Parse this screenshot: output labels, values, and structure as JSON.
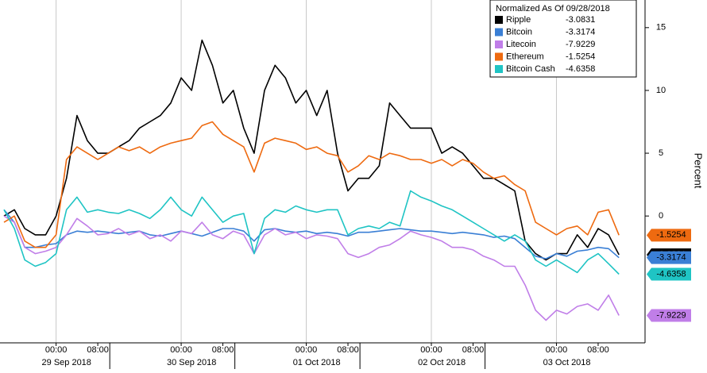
{
  "chart_data": {
    "type": "line",
    "legend_title": "Normalized As Of 09/28/2018",
    "y_label": "Percent",
    "x": [
      "2018-09-28 14:00",
      "2018-09-28 16:00",
      "2018-09-28 18:00",
      "2018-09-28 20:00",
      "2018-09-28 22:00",
      "2018-09-29 00:00",
      "2018-09-29 02:00",
      "2018-09-29 04:00",
      "2018-09-29 06:00",
      "2018-09-29 08:00",
      "2018-09-29 10:00",
      "2018-09-29 12:00",
      "2018-09-29 14:00",
      "2018-09-29 16:00",
      "2018-09-29 18:00",
      "2018-09-29 20:00",
      "2018-09-29 22:00",
      "2018-09-30 00:00",
      "2018-09-30 02:00",
      "2018-09-30 04:00",
      "2018-09-30 06:00",
      "2018-09-30 08:00",
      "2018-09-30 10:00",
      "2018-09-30 12:00",
      "2018-09-30 14:00",
      "2018-09-30 16:00",
      "2018-09-30 18:00",
      "2018-09-30 20:00",
      "2018-09-30 22:00",
      "2018-10-01 00:00",
      "2018-10-01 02:00",
      "2018-10-01 04:00",
      "2018-10-01 06:00",
      "2018-10-01 08:00",
      "2018-10-01 10:00",
      "2018-10-01 12:00",
      "2018-10-01 14:00",
      "2018-10-01 16:00",
      "2018-10-01 18:00",
      "2018-10-01 20:00",
      "2018-10-01 22:00",
      "2018-10-02 00:00",
      "2018-10-02 02:00",
      "2018-10-02 04:00",
      "2018-10-02 06:00",
      "2018-10-02 08:00",
      "2018-10-02 10:00",
      "2018-10-02 12:00",
      "2018-10-02 14:00",
      "2018-10-02 16:00",
      "2018-10-02 18:00",
      "2018-10-02 20:00",
      "2018-10-02 22:00",
      "2018-10-03 00:00",
      "2018-10-03 02:00",
      "2018-10-03 04:00",
      "2018-10-03 06:00",
      "2018-10-03 08:00",
      "2018-10-03 10:00",
      "2018-10-03 12:00"
    ],
    "series": [
      {
        "name": "Ripple",
        "color": "#000000",
        "label_text_color": "#ffffff",
        "values": [
          0,
          0.5,
          -1,
          -1.5,
          -1.5,
          0,
          3,
          8,
          6,
          5,
          5,
          5.5,
          6,
          7,
          7.5,
          8,
          9,
          11,
          10,
          14,
          12,
          9,
          10,
          7,
          5,
          10,
          12,
          11,
          9,
          10,
          8,
          10,
          5,
          2,
          3,
          3,
          4,
          9,
          8,
          7,
          7,
          7,
          5,
          5.5,
          5,
          4,
          3,
          3,
          2.5,
          2,
          -2,
          -3,
          -3.5,
          -3,
          -3,
          -1.5,
          -2.5,
          -1,
          -1.5,
          -3.0831
        ]
      },
      {
        "name": "Bitcoin",
        "color": "#3a7fd5",
        "label_text_color": "#000000",
        "values": [
          0.5,
          -0.5,
          -2.5,
          -2.5,
          -2.3,
          -2.2,
          -1.5,
          -1.2,
          -1.3,
          -1.2,
          -1.3,
          -1.4,
          -1.3,
          -1.2,
          -1.5,
          -1.6,
          -1.4,
          -1.2,
          -1.4,
          -1.6,
          -1.3,
          -1.0,
          -1.0,
          -1.2,
          -2.0,
          -1.1,
          -1.0,
          -1.2,
          -1.3,
          -1.2,
          -1.4,
          -1.3,
          -1.4,
          -1.6,
          -1.3,
          -1.3,
          -1.2,
          -1.1,
          -1.0,
          -1.1,
          -1.2,
          -1.2,
          -1.3,
          -1.4,
          -1.3,
          -1.4,
          -1.5,
          -1.7,
          -1.6,
          -1.8,
          -2.5,
          -3.2,
          -3.4,
          -3.0,
          -3.2,
          -2.8,
          -2.7,
          -2.5,
          -2.6,
          -3.3174
        ]
      },
      {
        "name": "Litecoin",
        "color": "#c07ee8",
        "label_text_color": "#000000",
        "values": [
          0,
          -0.5,
          -2.5,
          -3,
          -2.8,
          -2.5,
          -1.5,
          -0.2,
          -0.8,
          -1.5,
          -1.4,
          -1.0,
          -1.5,
          -1.2,
          -1.8,
          -1.5,
          -2.0,
          -1.2,
          -1.4,
          -0.5,
          -1.5,
          -1.8,
          -1.2,
          -1.5,
          -3.0,
          -1.5,
          -1.0,
          -1.5,
          -1.3,
          -1.8,
          -1.5,
          -1.6,
          -1.8,
          -3.0,
          -3.3,
          -3.0,
          -2.5,
          -2.3,
          -1.8,
          -1.2,
          -1.5,
          -1.7,
          -2.0,
          -2.5,
          -2.5,
          -2.7,
          -3.2,
          -3.5,
          -4.0,
          -4.0,
          -5.5,
          -7.5,
          -8.3,
          -7.5,
          -7.8,
          -7.2,
          -7.0,
          -7.5,
          -6.3,
          -7.9229
        ]
      },
      {
        "name": "Ethereum",
        "color": "#ee6a10",
        "label_text_color": "#000000",
        "values": [
          -0.5,
          0,
          -2,
          -2.5,
          -2.5,
          -1.5,
          4.5,
          5.5,
          5,
          4.5,
          5,
          5.5,
          5.2,
          5.5,
          5.0,
          5.5,
          5.8,
          6.0,
          6.2,
          7.2,
          7.5,
          6.5,
          6.0,
          5.5,
          3.5,
          5.8,
          6.2,
          6.0,
          5.8,
          5.3,
          5.5,
          5.0,
          4.8,
          3.5,
          4.0,
          4.8,
          4.5,
          5.0,
          4.8,
          4.5,
          4.5,
          4.2,
          4.5,
          4.0,
          4.5,
          4.2,
          3.5,
          3.0,
          3.2,
          2.5,
          2.0,
          -0.5,
          -1.0,
          -1.5,
          -1.0,
          -0.8,
          -1.5,
          0.3,
          0.5,
          -1.5254
        ]
      },
      {
        "name": "Bitcoin Cash",
        "color": "#1fc4c4",
        "label_text_color": "#000000",
        "values": [
          0.5,
          -1,
          -3.5,
          -4,
          -3.7,
          -3,
          0.5,
          1.5,
          0.3,
          0.5,
          0.3,
          0.2,
          0.5,
          0.2,
          -0.2,
          0.5,
          1.5,
          0.5,
          0.0,
          1.5,
          0.5,
          -0.5,
          0,
          0.2,
          -3.0,
          -0.2,
          0.5,
          0.3,
          0.8,
          0.5,
          0.3,
          0.5,
          0.5,
          -1.5,
          -1.0,
          -0.8,
          -1.0,
          -0.5,
          -0.8,
          2.0,
          1.5,
          1.2,
          0.8,
          0.5,
          0.0,
          -0.5,
          -1.0,
          -1.5,
          -2.0,
          -1.5,
          -2.0,
          -3.5,
          -4.0,
          -3.5,
          -4.0,
          -4.5,
          -3.5,
          -3.0,
          -3.8,
          -4.6358
        ]
      }
    ],
    "xlim": [
      "2018-09-28 14:00",
      "2018-10-03 17:00"
    ],
    "xticks": [
      {
        "value": "2018-09-29 00:00",
        "label": "00:00"
      },
      {
        "value": "2018-09-29 08:00",
        "label": "08:00"
      },
      {
        "value": "2018-09-30 00:00",
        "label": "00:00"
      },
      {
        "value": "2018-09-30 08:00",
        "label": "08:00"
      },
      {
        "value": "2018-10-01 00:00",
        "label": "00:00"
      },
      {
        "value": "2018-10-01 08:00",
        "label": "08:00"
      },
      {
        "value": "2018-10-02 00:00",
        "label": "00:00"
      },
      {
        "value": "2018-10-02 08:00",
        "label": "08:00"
      },
      {
        "value": "2018-10-03 00:00",
        "label": "00:00"
      },
      {
        "value": "2018-10-03 08:00",
        "label": "08:00"
      }
    ],
    "x_groups": [
      "29 Sep 2018",
      "30 Sep 2018",
      "01 Oct 2018",
      "02 Oct 2018",
      "03 Oct 2018"
    ],
    "ylim": [
      -10.1,
      17.2
    ],
    "yticks": [
      0,
      5,
      10,
      15
    ],
    "y_axis_side": "right",
    "legend_position": "top-right"
  }
}
